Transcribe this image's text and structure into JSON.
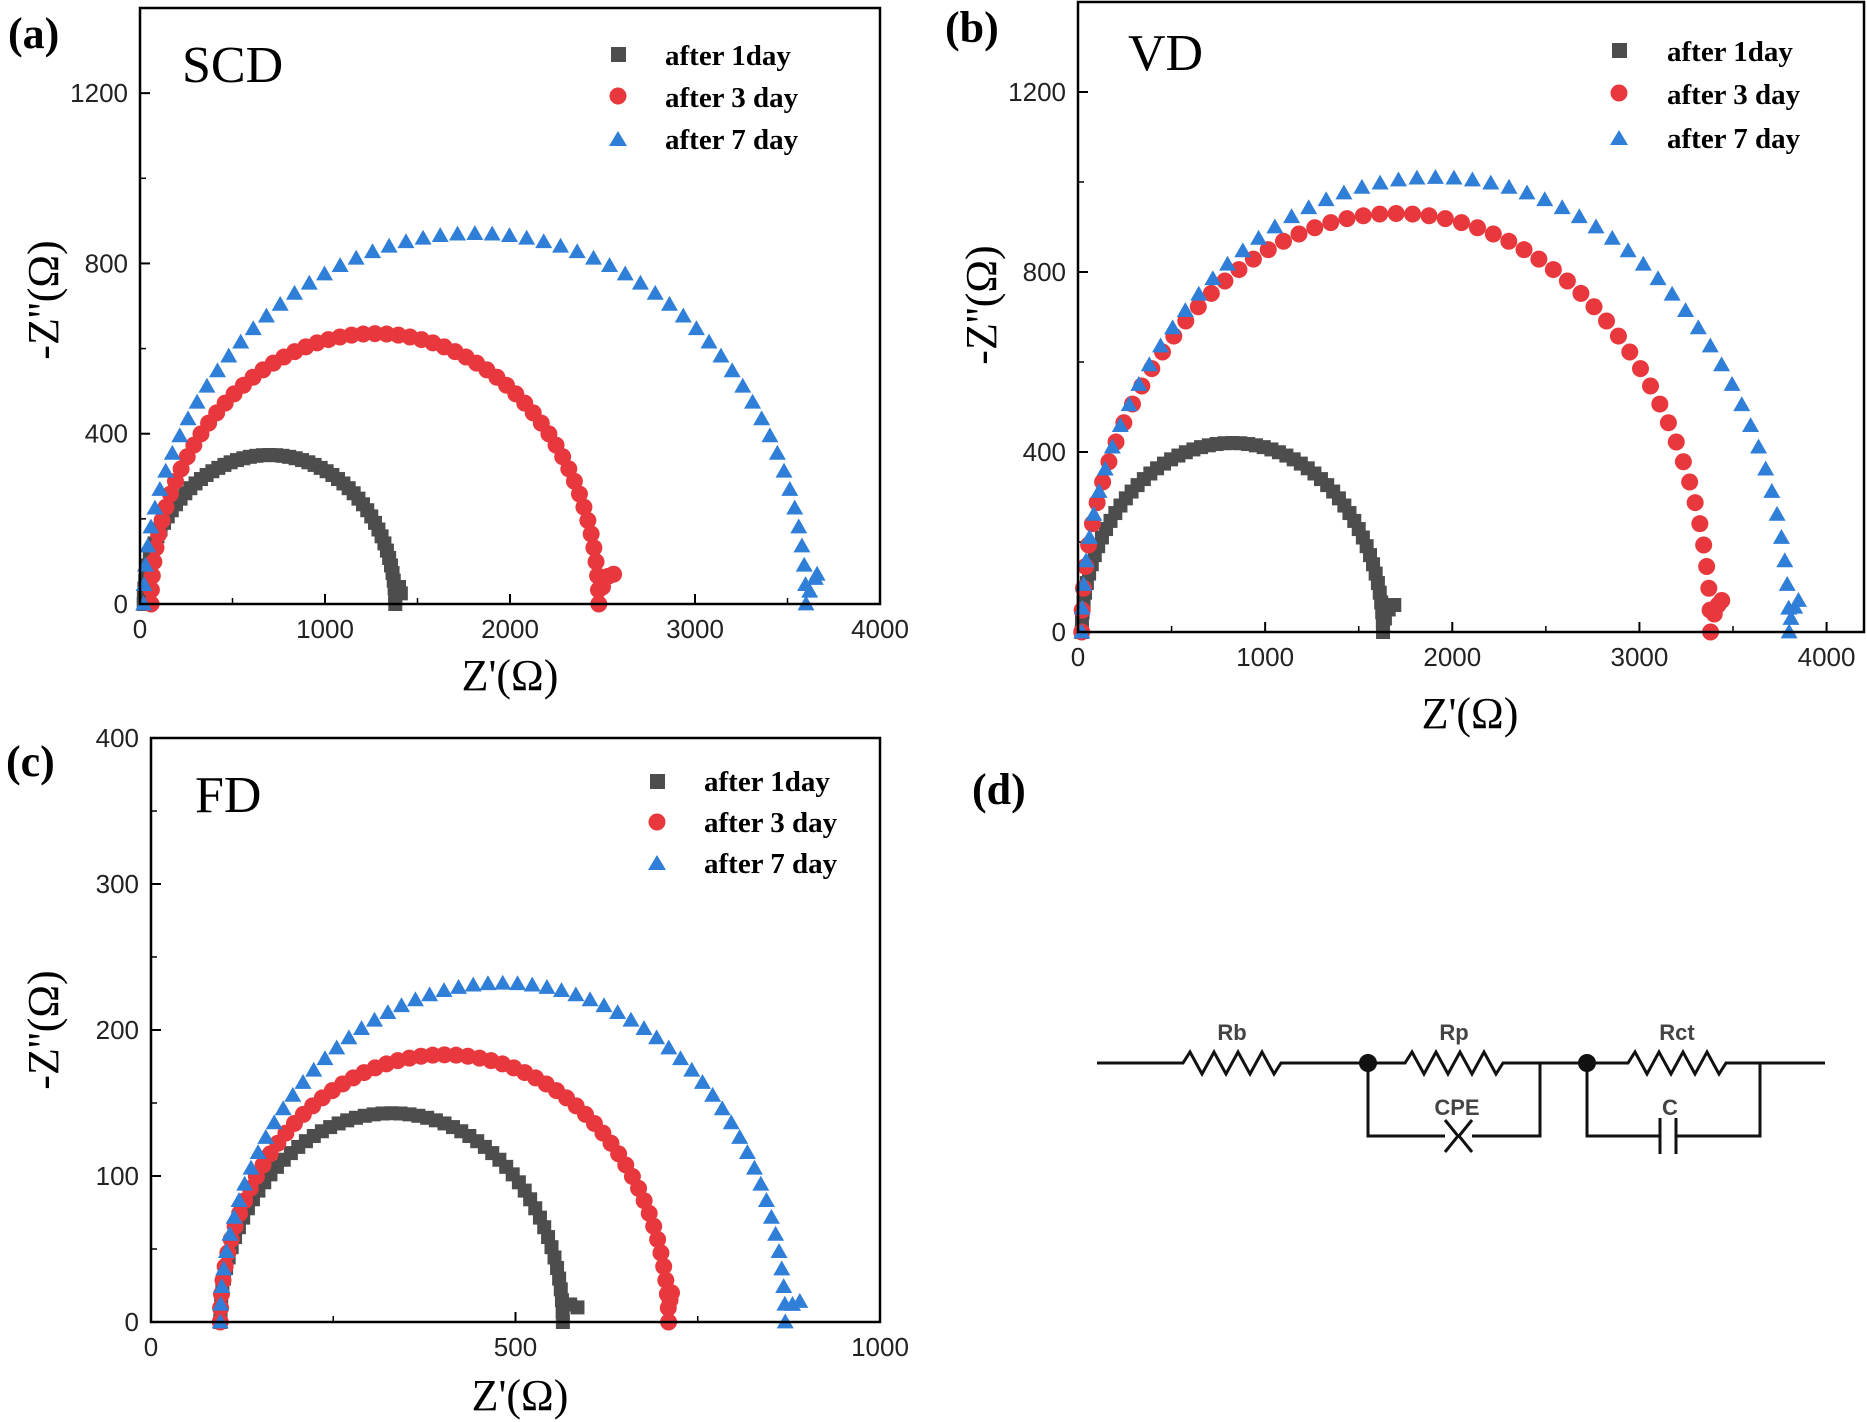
{
  "colors": {
    "series1": "#4d4d4d",
    "series2": "#e8383d",
    "series3": "#2f7ed8"
  },
  "chart_data": [
    {
      "type": "scatter",
      "panel_label": "(a)",
      "title": "SCD",
      "xlabel": "Z'(Ω)",
      "ylabel": "-Z''(Ω)",
      "xlim": [
        0,
        4000
      ],
      "ylim": [
        0,
        1400
      ],
      "xticks": [
        0,
        1000,
        2000,
        3000,
        4000
      ],
      "yticks": [
        0,
        400,
        800,
        1200
      ],
      "xtick_labels": [
        "0",
        "1000",
        "2000",
        "3000",
        "4000"
      ],
      "ytick_labels": [
        "0",
        "400",
        "800",
        "1200"
      ],
      "legend_position": "top-right",
      "series": [
        {
          "name": "after 1day",
          "marker": "square",
          "x_start": 20,
          "x_end": 1380,
          "peak": 350,
          "tail": [
            [
              1390,
              30
            ],
            [
              1400,
              40
            ],
            [
              1410,
              25
            ]
          ]
        },
        {
          "name": "after 3 day",
          "marker": "circle",
          "x_start": 60,
          "x_end": 2480,
          "peak": 635,
          "tail": [
            [
              2500,
              40
            ],
            [
              2530,
              65
            ],
            [
              2560,
              70
            ]
          ]
        },
        {
          "name": "after 7 day",
          "marker": "triangle",
          "x_start": 20,
          "x_end": 3600,
          "peak": 870,
          "tail": [
            [
              3620,
              30
            ],
            [
              3650,
              60
            ],
            [
              3660,
              70
            ]
          ]
        }
      ]
    },
    {
      "type": "scatter",
      "panel_label": "(b)",
      "title": "VD",
      "xlabel": "Z'(Ω)",
      "ylabel": "-Z''(Ω)",
      "xlim": [
        0,
        4200
      ],
      "ylim": [
        0,
        1400
      ],
      "xticks": [
        0,
        1000,
        2000,
        3000,
        4000
      ],
      "yticks": [
        0,
        400,
        800,
        1200
      ],
      "xtick_labels": [
        "0",
        "1000",
        "2000",
        "3000",
        "4000"
      ],
      "ytick_labels": [
        "0",
        "400",
        "800",
        "1200"
      ],
      "legend_position": "top-right",
      "series": [
        {
          "name": "after 1day",
          "marker": "square",
          "x_start": 20,
          "x_end": 1630,
          "peak": 420,
          "tail": [
            [
              1640,
              30
            ],
            [
              1660,
              50
            ],
            [
              1690,
              60
            ]
          ]
        },
        {
          "name": "after 3 day",
          "marker": "circle",
          "x_start": 20,
          "x_end": 3380,
          "peak": 930,
          "tail": [
            [
              3400,
              40
            ],
            [
              3420,
              60
            ],
            [
              3440,
              70
            ]
          ]
        },
        {
          "name": "after 7 day",
          "marker": "triangle",
          "x_start": 20,
          "x_end": 3800,
          "peak": 1010,
          "tail": [
            [
              3810,
              30
            ],
            [
              3830,
              55
            ],
            [
              3850,
              70
            ]
          ]
        }
      ]
    },
    {
      "type": "scatter",
      "panel_label": "(c)",
      "title": "FD",
      "xlabel": "Z'(Ω)",
      "ylabel": "-Z''(Ω)",
      "xlim": [
        0,
        1000
      ],
      "ylim": [
        0,
        400
      ],
      "xticks": [
        0,
        500,
        1000
      ],
      "yticks": [
        0,
        100,
        200,
        300,
        400
      ],
      "xtick_labels": [
        "0",
        "500",
        "1000"
      ],
      "ytick_labels": [
        "0",
        "100",
        "200",
        "300",
        "400"
      ],
      "legend_position": "top-right",
      "series": [
        {
          "name": "after 1day",
          "marker": "square",
          "x_start": 95,
          "x_end": 565,
          "peak": 143,
          "tail": [
            [
              575,
              12
            ],
            [
              585,
              10
            ]
          ]
        },
        {
          "name": "after 3 day",
          "marker": "circle",
          "x_start": 95,
          "x_end": 710,
          "peak": 183,
          "tail": [
            [
              712,
              15
            ],
            [
              714,
              20
            ]
          ]
        },
        {
          "name": "after 7 day",
          "marker": "triangle",
          "x_start": 95,
          "x_end": 870,
          "peak": 232,
          "tail": [
            [
              880,
              12
            ],
            [
              890,
              14
            ]
          ]
        }
      ]
    }
  ],
  "circuit": {
    "panel_label": "(d)",
    "labels": {
      "rb": "Rb",
      "rp": "Rp",
      "rct": "Rct",
      "cpe": "CPE",
      "c": "C"
    }
  }
}
